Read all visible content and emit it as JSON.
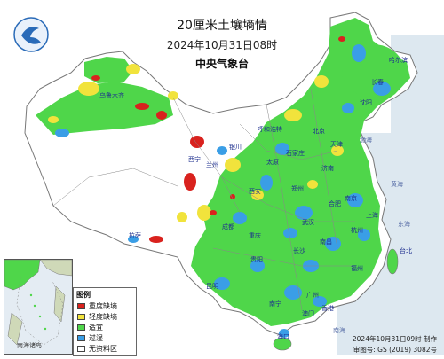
{
  "header": {
    "title": "20厘米土壤墒情",
    "date": "2024年10月31日08时",
    "org": "中央气象台"
  },
  "legend": {
    "title": "图例",
    "items": [
      {
        "label": "重度缺墒",
        "color": "#d9221e"
      },
      {
        "label": "轻度缺墒",
        "color": "#f1e33c"
      },
      {
        "label": "适宜",
        "color": "#4fd64a"
      },
      {
        "label": "过湿",
        "color": "#3a9ee6"
      },
      {
        "label": "无资料区",
        "color": "#ffffff"
      }
    ]
  },
  "inset": {
    "label": "南海诸岛"
  },
  "footer": {
    "made": "2024年10月31日09时 制作",
    "review": "审图号: GS (2019) 3082号"
  },
  "places": {
    "haerbin": "哈尔滨",
    "changchun": "长春",
    "shenyang": "沈阳",
    "beijing": "北京",
    "tianjin": "天津",
    "shijiazhuang": "石家庄",
    "taiyuan": "太原",
    "jinan": "济南",
    "zhengzhou": "郑州",
    "xian": "西安",
    "lanzhou": "兰州",
    "xining": "西宁",
    "yinchuan": "银川",
    "huhehaote": "呼和浩特",
    "wulumuqi": "乌鲁木齐",
    "lasa": "拉萨",
    "chengdu": "成都",
    "chongqing": "重庆",
    "wuhan": "武汉",
    "hefei": "合肥",
    "nanjing": "南京",
    "shanghai": "上海",
    "hangzhou": "杭州",
    "nanchang": "南昌",
    "changsha": "长沙",
    "fuzhou": "福州",
    "guiyang": "贵阳",
    "kunming": "昆明",
    "nanning": "南宁",
    "guangzhou": "广州",
    "xianggang": "香港",
    "aomen": "澳门",
    "haikou": "海口",
    "taibei": "台北"
  },
  "seas": {
    "bohai": "渤海",
    "huanghai": "黄海",
    "donghai": "东海",
    "nanhai": "南海"
  },
  "colors": {
    "severe": "#d9221e",
    "light": "#f1e33c",
    "suitable": "#4fd64a",
    "wet": "#3a9ee6",
    "sea": "#d8e4ee"
  }
}
